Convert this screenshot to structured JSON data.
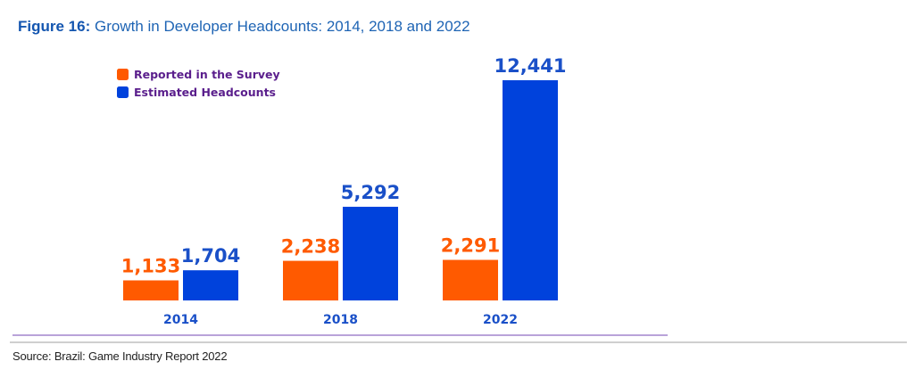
{
  "title": {
    "prefix": "Figure 16:",
    "text": "Growth in Developer Headcounts: 2014, 2018 and 2022"
  },
  "source": "Source: Brazil: Game Industry Report 2022",
  "chart_data": {
    "type": "bar",
    "title": "Figure 16: Growth in Developer Headcounts: 2014, 2018 and 2022",
    "xlabel": "",
    "ylabel": "",
    "categories": [
      "2014",
      "2018",
      "2022"
    ],
    "series": [
      {
        "name": "Reported in the Survey",
        "color": "#ff5a00",
        "values": [
          1133,
          2238,
          2291
        ],
        "labels": [
          "1,133",
          "2,238",
          "2,291"
        ]
      },
      {
        "name": "Estimated Headcounts",
        "color": "#0042dc",
        "values": [
          1704,
          5292,
          12441
        ],
        "labels": [
          "1,704",
          "5,292",
          "12,441"
        ]
      }
    ],
    "ylim": [
      0,
      12441
    ],
    "grid": false,
    "legend_position": "top-left",
    "data_labels": true,
    "label_colors": {
      "Reported in the Survey": "#ff5a00",
      "Estimated Headcounts": "#1a50c8"
    }
  }
}
